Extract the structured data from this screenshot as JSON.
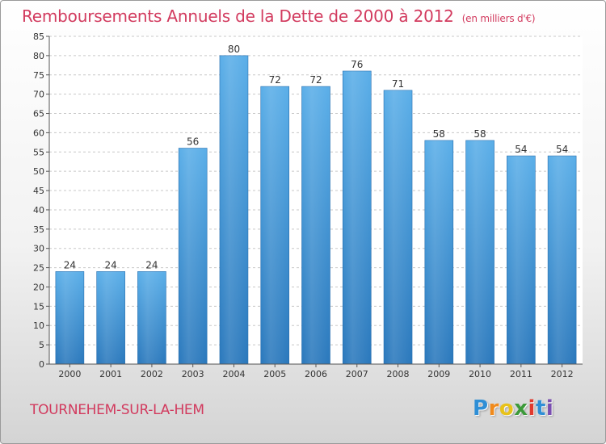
{
  "header": {
    "title": "Remboursements Annuels de la Dette de 2000 à 2012",
    "subtitle": "(en milliers d'€)"
  },
  "footer": {
    "city": "TOURNEHEM-SUR-LA-HEM",
    "logo_letters": [
      "P",
      "r",
      "o",
      "x",
      "i",
      "t",
      "i"
    ],
    "logo_colors": [
      "#2f8fd6",
      "#f08a1c",
      "#e8c21a",
      "#3d9a3a",
      "#e03a2e",
      "#2f8fd6",
      "#7a4fb0"
    ]
  },
  "chart_data": {
    "type": "bar",
    "categories": [
      "2000",
      "2001",
      "2002",
      "2003",
      "2004",
      "2005",
      "2006",
      "2007",
      "2008",
      "2009",
      "2010",
      "2011",
      "2012"
    ],
    "values": [
      24,
      24,
      24,
      56,
      80,
      72,
      72,
      76,
      71,
      58,
      58,
      54,
      54
    ],
    "title": "Remboursements Annuels de la Dette de 2000 à 2012",
    "xlabel": "",
    "ylabel": "",
    "ylim": [
      0,
      85
    ],
    "yticks": [
      0,
      5,
      10,
      15,
      20,
      25,
      30,
      35,
      40,
      45,
      50,
      55,
      60,
      65,
      70,
      75,
      80,
      85
    ],
    "grid": true,
    "bar_color": "#3f93d6"
  }
}
